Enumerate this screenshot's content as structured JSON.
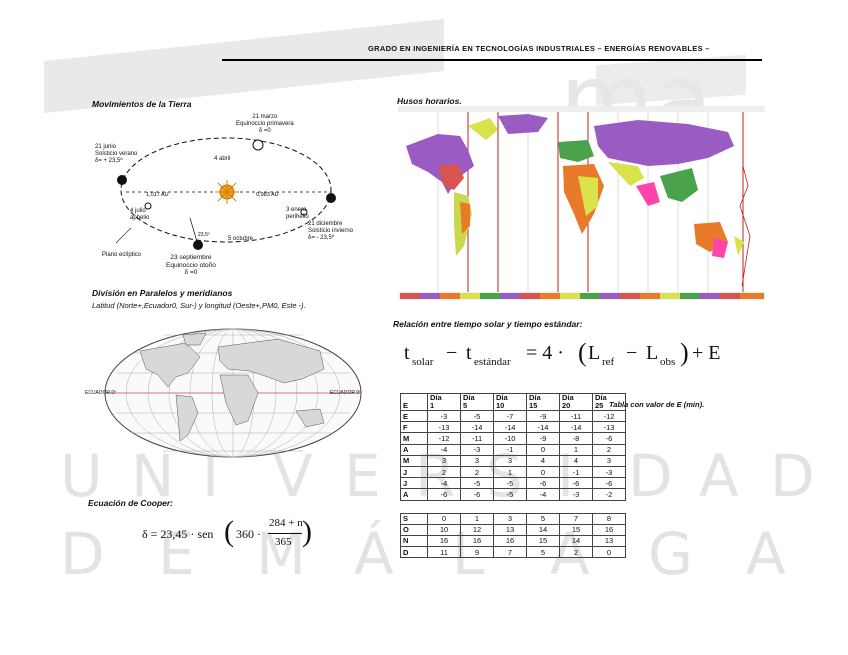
{
  "header": {
    "title": "GRADO EN INGENIERÍA EN TECNOLOGÍAS INDUSTRIALES – ENERGÍAS RENOVABLES –"
  },
  "watermark": {
    "logo_text": "ma",
    "row1": [
      "U",
      "N",
      "I",
      "V",
      "E",
      "R",
      "S",
      "I",
      "D",
      "A",
      "D"
    ],
    "row2": [
      "D",
      "E",
      "M",
      "Á",
      "L",
      "A",
      "G",
      "A"
    ]
  },
  "earth_motion": {
    "title": "Movimientos de la Tierra",
    "labels": {
      "march": "21 marzo\nEquinoccio primavera\nδ =0",
      "june": "21 junio\nSolsticio verano\nδ= + 23,5º",
      "april": "4 abril",
      "july": "4 julio\naphelio",
      "jan": "3 enero\nperihelio",
      "dec": "21 diciembre\nSolsticio invierno\nδ= - 23,5º",
      "oct": "5 octubre",
      "sep": "23 septiembre\nEquinoccio otoño\nδ =0",
      "plane": "Plano eclíptico",
      "d1": "1,017 AU",
      "d2": "0,983 AU",
      "tilt": "23,5º"
    }
  },
  "parallels": {
    "title": "División en Paralelos y meridianos",
    "subtitle": "Latitud (Norte+,Ecuador0, Sur-) y longitud (Oeste+,PM0, Este -).",
    "equator_left": "ECUADOR 0º",
    "equator_right": "ECUADOR 0º"
  },
  "cooper": {
    "title": "Ecuación de Cooper:",
    "lhs": "δ = 23,45 · sen",
    "k": "360 ·",
    "num": "284 + n",
    "den": "365"
  },
  "timezones": {
    "title": "Husos horarios."
  },
  "relation": {
    "title": "Relación entre tiempo solar y tiempo estándar:",
    "t": "t",
    "solar": "solar",
    "minus": "−",
    "estandar": "estándar",
    "eq": "= 4 ·",
    "L": "L",
    "ref": "ref",
    "obs": "obs",
    "plusE": "+ E"
  },
  "e_table": {
    "caption": "Tabla con valor de E (min).",
    "corner": "E",
    "columns": [
      {
        "top": "Día",
        "bottom": "1"
      },
      {
        "top": "Día",
        "bottom": "5"
      },
      {
        "top": "Día",
        "bottom": "10"
      },
      {
        "top": "Día",
        "bottom": "15"
      },
      {
        "top": "Día",
        "bottom": "20"
      },
      {
        "top": "Día",
        "bottom": "25"
      }
    ],
    "rows": [
      {
        "m": "E",
        "v": [
          "-3",
          "-5",
          "-7",
          "-9",
          "-11",
          "-12"
        ]
      },
      {
        "m": "F",
        "v": [
          "-13",
          "-14",
          "-14",
          "-14",
          "-14",
          "-13"
        ]
      },
      {
        "m": "M",
        "v": [
          "-12",
          "-11",
          "-10",
          "-9",
          "-8",
          "-6"
        ]
      },
      {
        "m": "A",
        "v": [
          "-4",
          "-3",
          "-1",
          "0",
          "1",
          "2"
        ]
      },
      {
        "m": "M",
        "v": [
          "3",
          "3",
          "3",
          "4",
          "4",
          "3"
        ]
      },
      {
        "m": "J",
        "v": [
          "2",
          "2",
          "1",
          "0",
          "-1",
          "-3"
        ]
      },
      {
        "m": "J",
        "v": [
          "-4",
          "-5",
          "-5",
          "-6",
          "-6",
          "-6"
        ]
      },
      {
        "m": "A",
        "v": [
          "-6",
          "-6",
          "-5",
          "-4",
          "-3",
          "-2"
        ]
      },
      {
        "m": "S",
        "v": [
          "0",
          "1",
          "3",
          "5",
          "7",
          "8"
        ]
      },
      {
        "m": "O",
        "v": [
          "10",
          "12",
          "13",
          "14",
          "15",
          "16"
        ]
      },
      {
        "m": "N",
        "v": [
          "16",
          "16",
          "16",
          "15",
          "14",
          "13"
        ]
      },
      {
        "m": "D",
        "v": [
          "11",
          "9",
          "7",
          "5",
          "2",
          "0"
        ]
      }
    ]
  }
}
